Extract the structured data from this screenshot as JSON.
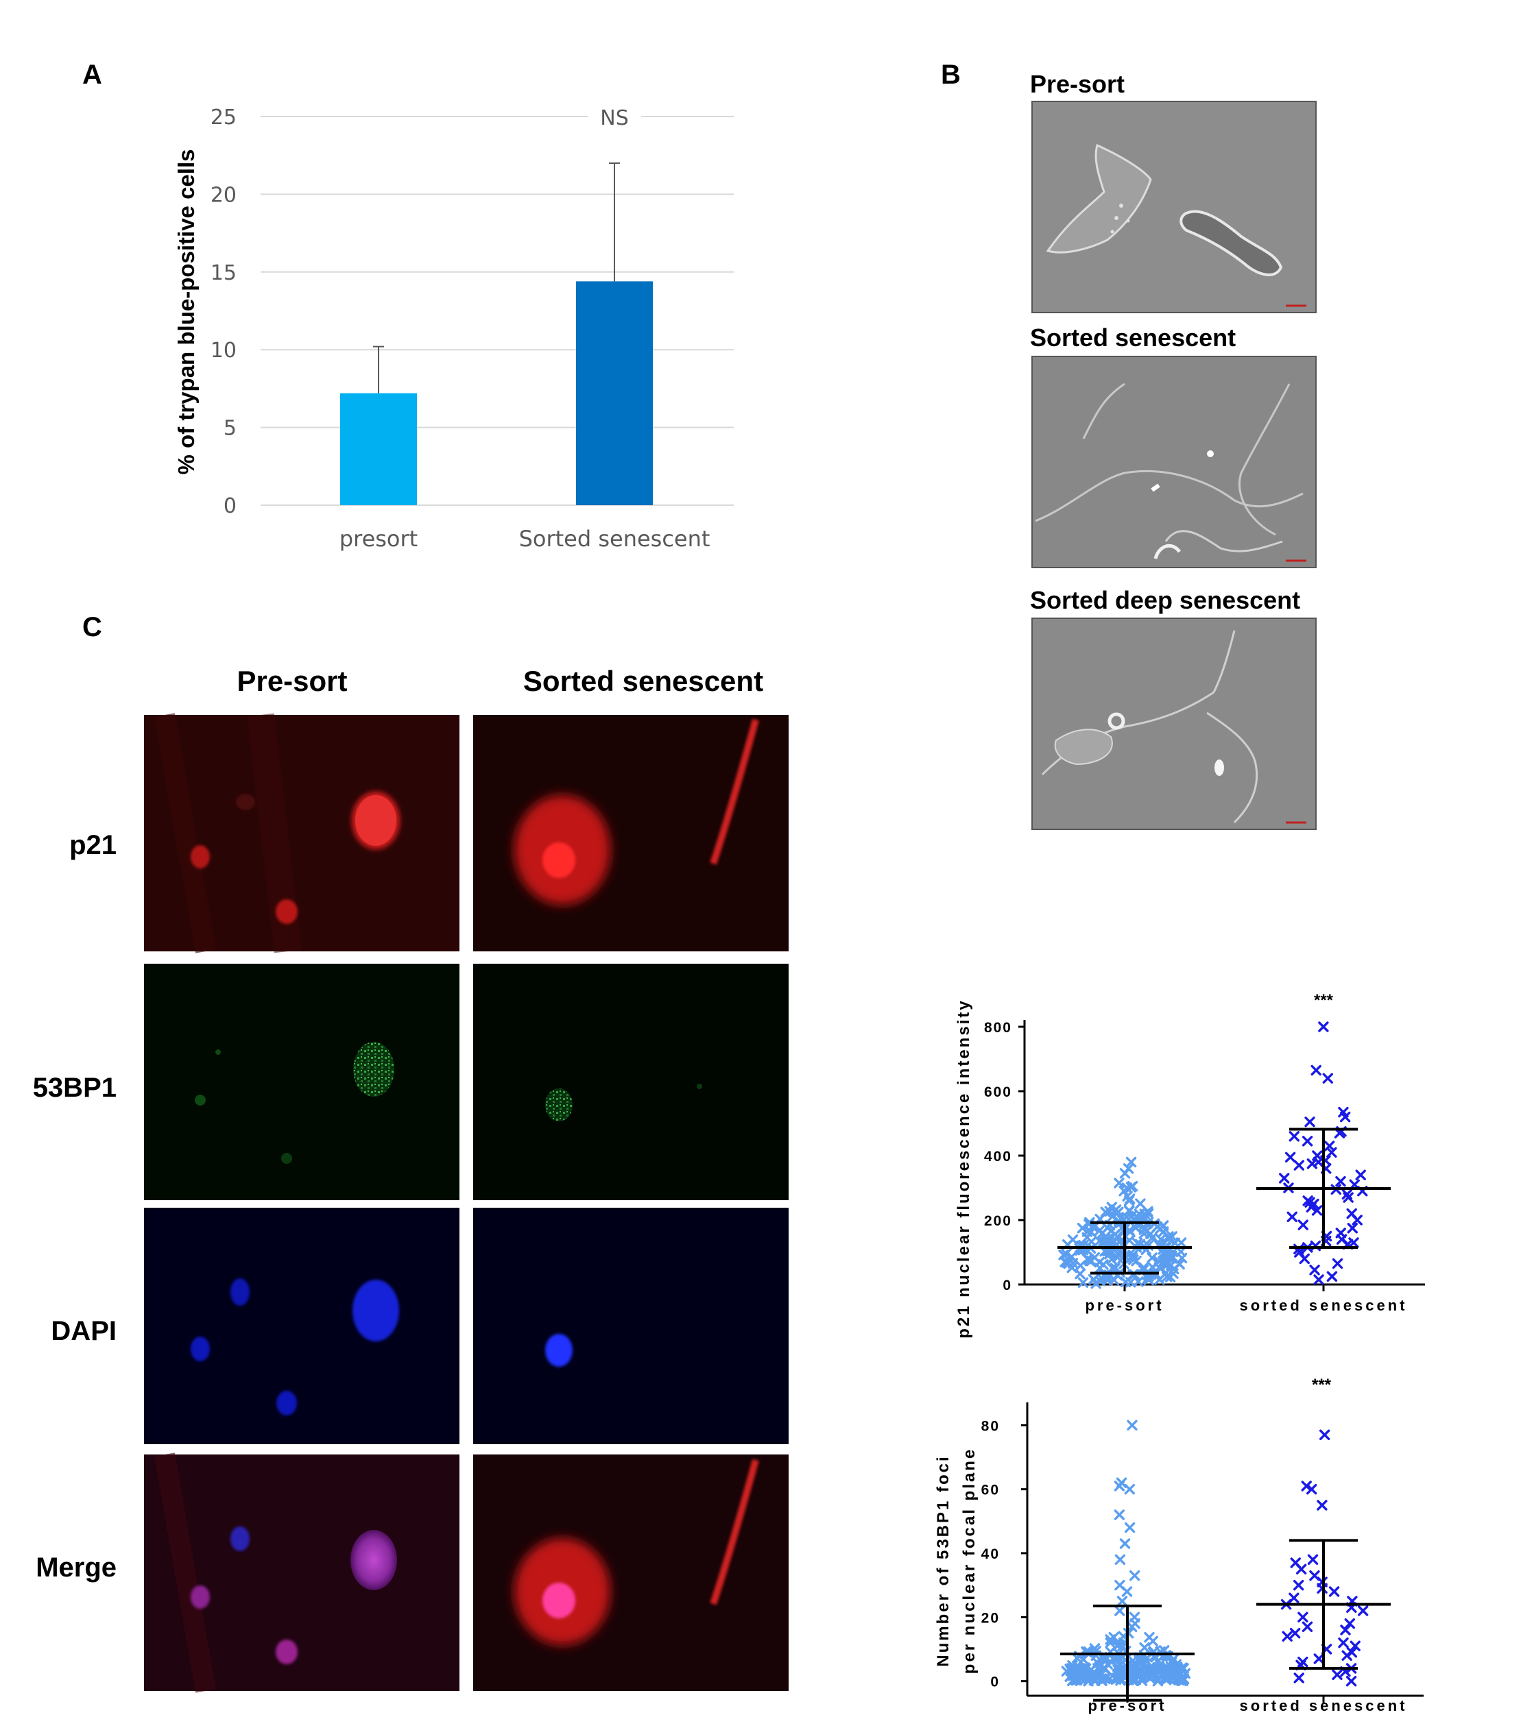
{
  "panels": {
    "a": "A",
    "b": "B",
    "c": "C"
  },
  "panel_b": {
    "titles": [
      "Pre-sort",
      "Sorted senescent",
      "Sorted deep senescent"
    ]
  },
  "panel_c": {
    "columns": [
      "Pre-sort",
      "Sorted senescent"
    ],
    "rows": [
      "p21",
      "53BP1",
      "DAPI",
      "Merge"
    ]
  },
  "chart_data": [
    {
      "type": "bar",
      "title": "",
      "ylabel": "% of trypan blue-positive cells",
      "xlabel": "",
      "categories": [
        "presort",
        "Sorted senescent"
      ],
      "values": [
        7.2,
        14.4
      ],
      "error_upper": [
        10.2,
        22.0
      ],
      "ylim": [
        0,
        25
      ],
      "yticks": [
        0,
        5,
        10,
        15,
        20,
        25
      ],
      "grid": true,
      "annotation": "NS",
      "colors": [
        "#00b0f0",
        "#0070c0"
      ]
    },
    {
      "type": "scatter",
      "ylabel": "p21 nuclear fluorescence intensity",
      "categories": [
        "pre-sort",
        "sorted senescent"
      ],
      "ylim": [
        0,
        800
      ],
      "yticks": [
        0,
        200,
        400,
        600,
        800
      ],
      "annotation": "***",
      "mean": [
        115,
        298
      ],
      "sd_low": [
        35,
        115
      ],
      "sd_high": [
        192,
        482
      ],
      "colors": [
        "#5b9ef0",
        "#1a1ae6"
      ]
    },
    {
      "type": "scatter",
      "ylabel_line1": "Number of 53BP1 foci",
      "ylabel_line2": "per nuclear focal plane",
      "categories": [
        "pre-sort",
        "sorted senescent"
      ],
      "ylim": [
        -8,
        85
      ],
      "yticks": [
        0,
        20,
        40,
        60,
        80
      ],
      "annotation": "***",
      "mean": [
        8.5,
        24
      ],
      "sd_low": [
        -6,
        4
      ],
      "sd_high": [
        23.5,
        44
      ],
      "colors": [
        "#5b9ef0",
        "#1a1ae6"
      ]
    }
  ]
}
